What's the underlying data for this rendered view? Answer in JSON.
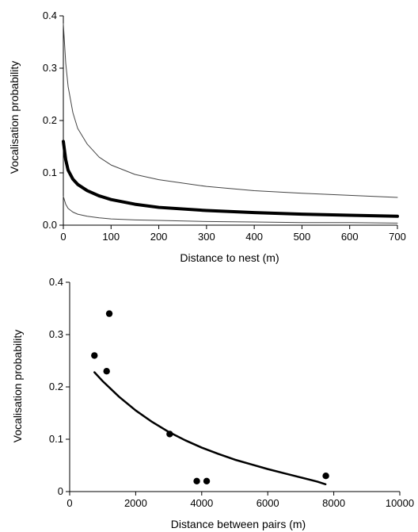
{
  "chart_data": [
    {
      "type": "line",
      "xlabel": "Distance to nest (m)",
      "ylabel": "Vocalisation probability",
      "xlim": [
        0,
        700
      ],
      "ylim": [
        0,
        0.4
      ],
      "xticks": [
        0,
        100,
        200,
        300,
        400,
        500,
        600,
        700
      ],
      "yticks": [
        0.0,
        0.1,
        0.2,
        0.3,
        0.4
      ],
      "xtick_labels": [
        "0",
        "100",
        "200",
        "300",
        "400",
        "500",
        "600",
        "700"
      ],
      "ytick_labels": [
        "0.0",
        "0.1",
        "0.2",
        "0.3",
        "0.4"
      ],
      "grid": false,
      "series": [
        {
          "role": "upper-confidence-bound",
          "x": [
            0,
            5,
            10,
            20,
            30,
            50,
            75,
            100,
            150,
            200,
            300,
            400,
            500,
            600,
            700
          ],
          "y": [
            0.385,
            0.31,
            0.265,
            0.215,
            0.185,
            0.155,
            0.13,
            0.115,
            0.097,
            0.087,
            0.074,
            0.066,
            0.061,
            0.057,
            0.053
          ],
          "color": "#444444"
        },
        {
          "role": "fitted",
          "x": [
            0,
            5,
            10,
            20,
            30,
            50,
            75,
            100,
            150,
            200,
            300,
            400,
            500,
            600,
            700
          ],
          "y": [
            0.16,
            0.125,
            0.105,
            0.088,
            0.078,
            0.066,
            0.056,
            0.049,
            0.04,
            0.034,
            0.028,
            0.024,
            0.021,
            0.019,
            0.017
          ],
          "color": "#000000"
        },
        {
          "role": "lower-confidence-bound",
          "x": [
            0,
            5,
            10,
            20,
            30,
            50,
            75,
            100,
            150,
            200,
            300,
            400,
            500,
            600,
            700
          ],
          "y": [
            0.055,
            0.04,
            0.032,
            0.025,
            0.021,
            0.017,
            0.014,
            0.012,
            0.01,
            0.009,
            0.007,
            0.006,
            0.005,
            0.005,
            0.004
          ],
          "color": "#444444"
        }
      ]
    },
    {
      "type": "scatter",
      "xlabel": "Distance between pairs (m)",
      "ylabel": "Vocalisation probability",
      "xlim": [
        0,
        10000
      ],
      "ylim": [
        0,
        0.4
      ],
      "xticks": [
        0,
        2000,
        4000,
        6000,
        8000,
        10000
      ],
      "yticks": [
        0,
        0.1,
        0.2,
        0.3,
        0.4
      ],
      "xtick_labels": [
        "0",
        "2000",
        "4000",
        "6000",
        "8000",
        "10000"
      ],
      "ytick_labels": [
        "0",
        "0.1",
        "0.2",
        "0.3",
        "0.4"
      ],
      "grid": false,
      "points": [
        {
          "x": 750,
          "y": 0.26
        },
        {
          "x": 1120,
          "y": 0.23
        },
        {
          "x": 1200,
          "y": 0.34
        },
        {
          "x": 3030,
          "y": 0.11
        },
        {
          "x": 3850,
          "y": 0.02
        },
        {
          "x": 4150,
          "y": 0.02
        },
        {
          "x": 7760,
          "y": 0.03
        }
      ],
      "fit": {
        "x": [
          750,
          1000,
          1500,
          2000,
          2500,
          3000,
          3500,
          4000,
          4500,
          5000,
          5500,
          6000,
          6500,
          7000,
          7500,
          7750
        ],
        "y": [
          0.228,
          0.211,
          0.181,
          0.155,
          0.133,
          0.114,
          0.098,
          0.084,
          0.072,
          0.061,
          0.052,
          0.043,
          0.035,
          0.027,
          0.019,
          0.014
        ],
        "color": "#000000"
      }
    }
  ]
}
